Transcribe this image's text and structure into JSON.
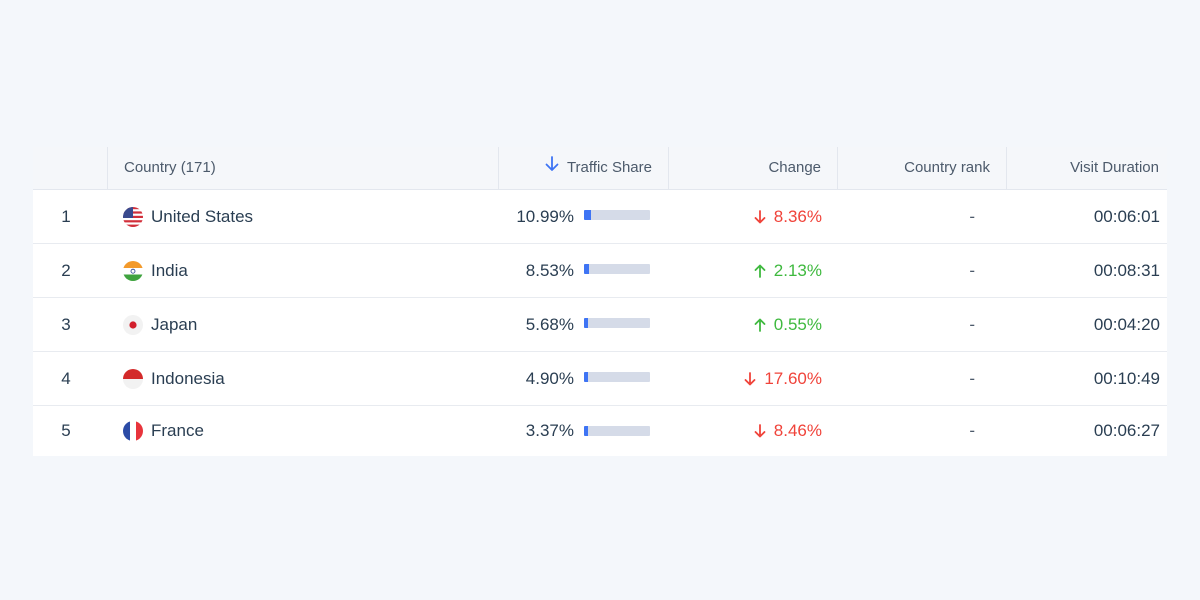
{
  "table": {
    "headers": {
      "country": "Country (171)",
      "traffic_share": "Traffic Share",
      "change": "Change",
      "country_rank": "Country rank",
      "visit_duration": "Visit Duration"
    },
    "sort": {
      "column": "traffic_share",
      "direction": "down",
      "icon": "arrow-down-icon"
    },
    "rows": [
      {
        "rank": "1",
        "country": "United States",
        "flag": "us-flag-icon",
        "share": "10.99%",
        "share_fraction": 0.1099,
        "change": "8.36%",
        "change_dir": "down",
        "country_rank": "-",
        "duration": "00:06:01"
      },
      {
        "rank": "2",
        "country": "India",
        "flag": "india-flag-icon",
        "share": "8.53%",
        "share_fraction": 0.0853,
        "change": "2.13%",
        "change_dir": "up",
        "country_rank": "-",
        "duration": "00:08:31"
      },
      {
        "rank": "3",
        "country": "Japan",
        "flag": "japan-flag-icon",
        "share": "5.68%",
        "share_fraction": 0.0568,
        "change": "0.55%",
        "change_dir": "up",
        "country_rank": "-",
        "duration": "00:04:20"
      },
      {
        "rank": "4",
        "country": "Indonesia",
        "flag": "indonesia-flag-icon",
        "share": "4.90%",
        "share_fraction": 0.049,
        "change": "17.60%",
        "change_dir": "down",
        "country_rank": "-",
        "duration": "00:10:49"
      },
      {
        "rank": "5",
        "country": "France",
        "flag": "france-flag-icon",
        "share": "3.37%",
        "share_fraction": 0.0337,
        "change": "8.46%",
        "change_dir": "down",
        "country_rank": "-",
        "duration": "00:06:27"
      }
    ]
  },
  "colors": {
    "accent": "#3e74f4",
    "up": "#3fb93f",
    "down": "#f0433a",
    "bar_track": "#d5dbe8"
  }
}
